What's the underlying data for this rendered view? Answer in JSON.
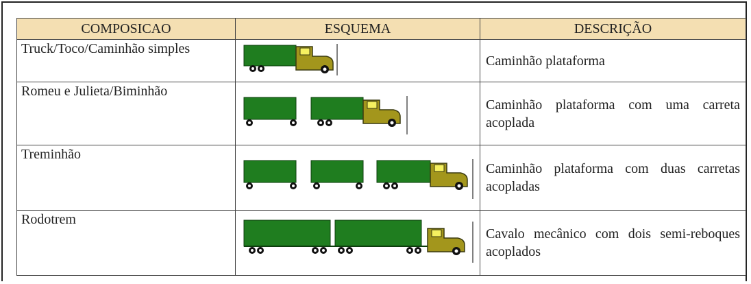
{
  "table": {
    "header": [
      "COMPOSICAO",
      "ESQUEMA",
      "DESCRIÇÃO"
    ],
    "rows": [
      {
        "composicao": "Truck/Toco/Caminhão simples",
        "descricao": "Caminhão plataforma"
      },
      {
        "composicao": "Romeu e Julieta/Biminhão",
        "descricao": "Caminhão plataforma com uma carreta acoplada"
      },
      {
        "composicao": "Treminhão",
        "descricao": "Caminhão plataforma com duas carretas acopladas"
      },
      {
        "composicao": "Rodotrem",
        "descricao": "Cavalo mecânico com dois semi-reboques acoplados"
      }
    ]
  }
}
